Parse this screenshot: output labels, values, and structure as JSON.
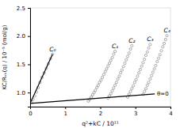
{
  "chart_data": {
    "type": "scatter",
    "xlabel": "q²+kC / 10¹¹",
    "ylabel": "KC/Rᵥᵥ(q) / 10⁻⁵ (mol/g)",
    "xlim": [
      0.0,
      4.0
    ],
    "ylim": [
      0.75,
      2.5
    ],
    "xticks": [
      0,
      1,
      2,
      3,
      4
    ],
    "yticks": [
      {
        "value": 1.0,
        "label": "1.0"
      },
      {
        "value": 1.5,
        "label": "1.5"
      },
      {
        "value": 2.0,
        "label": "2.0"
      },
      {
        "value": 2.5,
        "label": "2.5"
      }
    ],
    "grid": false,
    "series": [
      {
        "name": "C₀",
        "type": "scatter",
        "marker": "circle",
        "color": "#777777",
        "x": [
          0.04,
          0.08,
          0.13,
          0.18,
          0.23,
          0.28,
          0.34,
          0.4,
          0.46,
          0.52,
          0.58,
          0.64
        ],
        "values": [
          0.84,
          0.88,
          0.94,
          1.01,
          1.09,
          1.18,
          1.27,
          1.35,
          1.43,
          1.51,
          1.6,
          1.68
        ]
      },
      {
        "name": "C₁",
        "type": "scatter",
        "marker": "circle",
        "color": "#777777",
        "x": [
          1.66,
          1.7,
          1.74,
          1.78,
          1.82,
          1.86,
          1.9,
          1.94,
          1.98,
          2.02,
          2.06,
          2.1,
          2.14,
          2.18,
          2.22,
          2.26,
          2.3,
          2.34,
          2.38,
          2.42
        ],
        "values": [
          0.85,
          0.88,
          0.92,
          0.96,
          1.0,
          1.04,
          1.09,
          1.13,
          1.18,
          1.22,
          1.27,
          1.32,
          1.37,
          1.42,
          1.47,
          1.52,
          1.57,
          1.62,
          1.68,
          1.73
        ]
      },
      {
        "name": "C₂",
        "type": "scatter",
        "marker": "circle",
        "color": "#777777",
        "x": [
          2.22,
          2.26,
          2.3,
          2.34,
          2.38,
          2.42,
          2.46,
          2.5,
          2.54,
          2.58,
          2.62,
          2.66,
          2.7,
          2.74,
          2.78,
          2.82,
          2.86,
          2.9
        ],
        "values": [
          0.9,
          0.94,
          0.98,
          1.03,
          1.08,
          1.13,
          1.18,
          1.24,
          1.29,
          1.35,
          1.4,
          1.46,
          1.52,
          1.58,
          1.64,
          1.7,
          1.77,
          1.83
        ]
      },
      {
        "name": "C₃",
        "type": "scatter",
        "marker": "circle",
        "color": "#777777",
        "x": [
          2.78,
          2.82,
          2.86,
          2.9,
          2.94,
          2.98,
          3.02,
          3.06,
          3.1,
          3.14,
          3.18,
          3.22,
          3.26,
          3.3,
          3.34,
          3.38,
          3.42
        ],
        "values": [
          0.92,
          0.97,
          1.02,
          1.07,
          1.12,
          1.18,
          1.23,
          1.29,
          1.35,
          1.41,
          1.47,
          1.53,
          1.59,
          1.66,
          1.72,
          1.79,
          1.85
        ]
      },
      {
        "name": "C₄",
        "type": "scatter",
        "marker": "circle",
        "color": "#777777",
        "x": [
          3.22,
          3.26,
          3.3,
          3.34,
          3.38,
          3.42,
          3.46,
          3.5,
          3.54,
          3.58,
          3.62,
          3.66,
          3.7,
          3.74,
          3.78,
          3.82,
          3.86,
          3.9
        ],
        "values": [
          0.97,
          1.02,
          1.07,
          1.13,
          1.18,
          1.24,
          1.3,
          1.36,
          1.42,
          1.48,
          1.55,
          1.61,
          1.67,
          1.74,
          1.81,
          1.87,
          1.94,
          2.01
        ]
      },
      {
        "type": "line",
        "line_style": "solid",
        "color": "#000000",
        "x": [
          0.0,
          0.64
        ],
        "values": [
          0.808,
          1.68
        ]
      },
      {
        "name": "θ=0",
        "type": "line",
        "line_style": "solid",
        "color": "#000000",
        "x": [
          0.0,
          3.55
        ],
        "values": [
          0.808,
          0.975
        ]
      }
    ]
  }
}
